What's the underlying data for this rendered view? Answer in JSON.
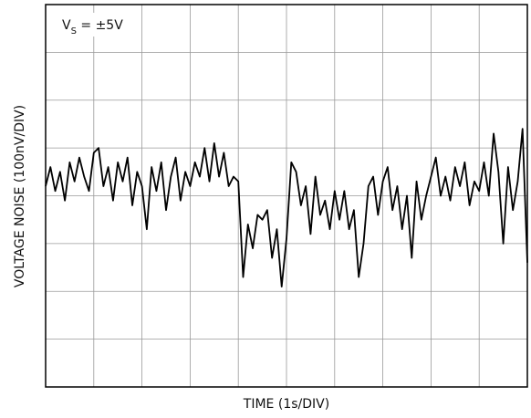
{
  "chart_data": {
    "type": "line",
    "y_label": "VOLTAGE NOISE (100nV/DIV)",
    "x_label": "TIME (1s/DIV)",
    "annotation": {
      "main": "V",
      "sub": "S",
      "rest": " = ±5V"
    },
    "x": [
      0.0,
      0.1,
      0.2,
      0.3,
      0.4,
      0.5,
      0.6,
      0.7,
      0.8,
      0.9,
      1.0,
      1.1,
      1.2,
      1.3,
      1.4,
      1.5,
      1.6,
      1.7,
      1.8,
      1.9,
      2.0,
      2.1,
      2.2,
      2.3,
      2.4,
      2.5,
      2.6,
      2.7,
      2.8,
      2.9,
      3.0,
      3.1,
      3.2,
      3.3,
      3.4,
      3.5,
      3.6,
      3.7,
      3.8,
      3.9,
      4.0,
      4.1,
      4.2,
      4.3,
      4.4,
      4.5,
      4.6,
      4.7,
      4.8,
      4.9,
      5.0,
      5.1,
      5.2,
      5.3,
      5.4,
      5.5,
      5.6,
      5.7,
      5.8,
      5.9,
      6.0,
      6.1,
      6.2,
      6.3,
      6.4,
      6.5,
      6.6,
      6.7,
      6.8,
      6.9,
      7.0,
      7.1,
      7.2,
      7.3,
      7.4,
      7.5,
      7.6,
      7.7,
      7.8,
      7.9,
      8.0,
      8.1,
      8.2,
      8.3,
      8.4,
      8.5,
      8.6,
      8.7,
      8.8,
      8.9,
      9.0,
      9.1,
      9.2,
      9.3,
      9.4,
      9.5,
      9.6,
      9.7,
      9.8,
      9.9,
      10.0
    ],
    "series": [
      {
        "color": "#000000",
        "values": [
          4.2,
          4.6,
          4.1,
          4.5,
          3.9,
          4.7,
          4.3,
          4.8,
          4.4,
          4.1,
          4.9,
          5.0,
          4.2,
          4.6,
          3.9,
          4.7,
          4.3,
          4.8,
          3.8,
          4.5,
          4.2,
          3.3,
          4.6,
          4.1,
          4.7,
          3.7,
          4.4,
          4.8,
          3.9,
          4.5,
          4.2,
          4.7,
          4.4,
          5.0,
          4.3,
          5.1,
          4.4,
          4.9,
          4.2,
          4.4,
          4.3,
          2.3,
          3.4,
          2.9,
          3.6,
          3.5,
          3.7,
          2.7,
          3.3,
          2.1,
          3.1,
          4.7,
          4.5,
          3.8,
          4.2,
          3.2,
          4.4,
          3.6,
          3.9,
          3.3,
          4.1,
          3.5,
          4.1,
          3.3,
          3.7,
          2.3,
          3.0,
          4.2,
          4.4,
          3.6,
          4.3,
          4.6,
          3.7,
          4.2,
          3.3,
          4.0,
          2.7,
          4.3,
          3.5,
          4.0,
          4.4,
          4.8,
          4.0,
          4.4,
          3.9,
          4.6,
          4.2,
          4.7,
          3.8,
          4.3,
          4.1,
          4.7,
          4.0,
          5.3,
          4.5,
          3.0,
          4.6,
          3.7,
          4.3,
          5.4,
          2.6
        ]
      }
    ],
    "xlim": [
      0,
      10
    ],
    "ylim": [
      0,
      8
    ],
    "xticks": [
      0,
      1,
      2,
      3,
      4,
      5,
      6,
      7,
      8,
      9,
      10
    ],
    "yticks": [
      0,
      1,
      2,
      3,
      4,
      5,
      6,
      7,
      8
    ],
    "grid": true
  }
}
